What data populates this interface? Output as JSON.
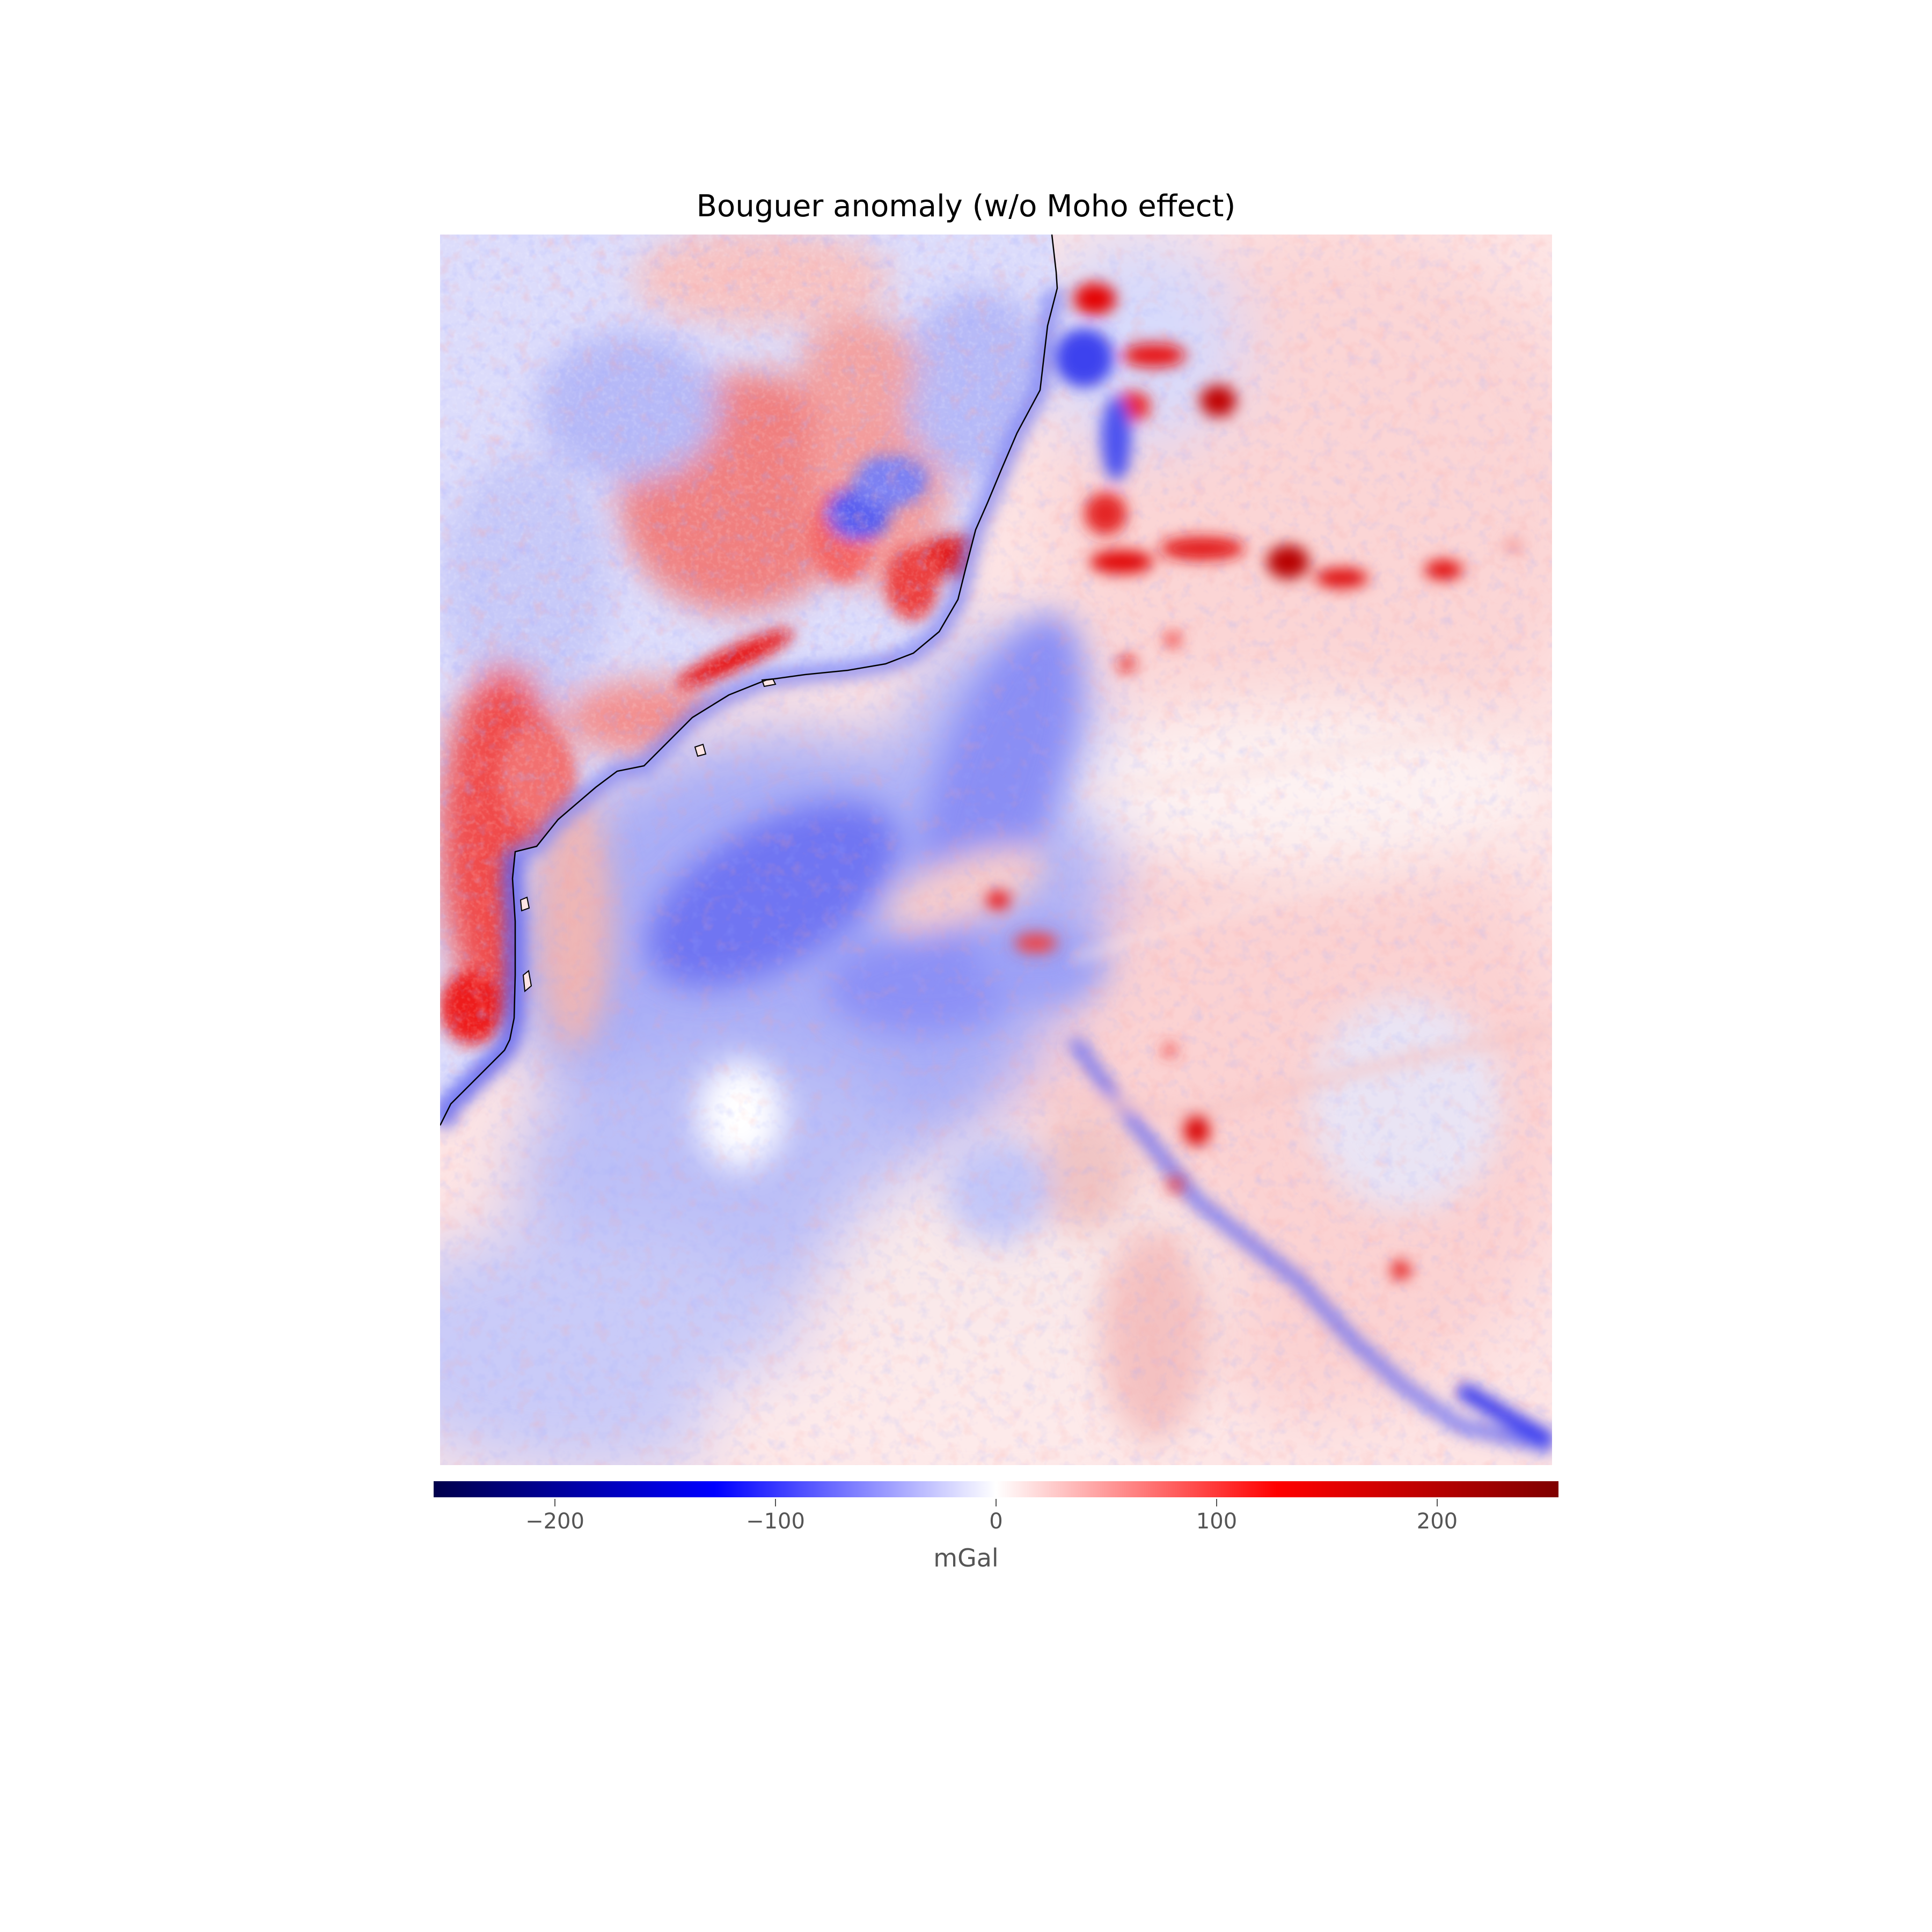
{
  "title": "Bouguer anomaly (w/o Moho effect)",
  "colormap": {
    "name": "seismic",
    "stops": [
      "#00004c",
      "#0000ff",
      "#ffffff",
      "#ff0000",
      "#7f0000"
    ],
    "vmin": -255,
    "vmax": 255
  },
  "colorbar": {
    "label": "mGal",
    "ticks": [
      -200,
      -100,
      0,
      100,
      200
    ],
    "tick_labels": [
      "−200",
      "−100",
      "0",
      "100",
      "200"
    ],
    "orientation": "horizontal",
    "placement": "below"
  },
  "map": {
    "feature": "coastline",
    "land_side": "upper-left",
    "ocean_side": "lower-right"
  }
}
